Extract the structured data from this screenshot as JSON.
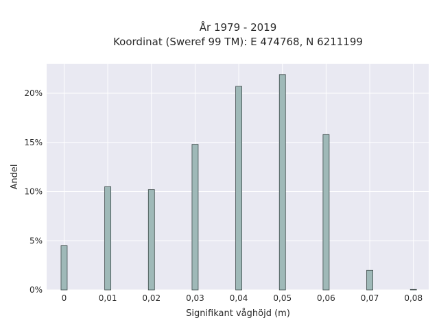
{
  "chart_data": {
    "type": "bar",
    "title_line1": "År 1979 - 2019",
    "title_line2": "Koordinat (Sweref 99 TM): E 474768, N 6211199",
    "xlabel": "Signifikant våghöjd (m)",
    "ylabel": "Andel",
    "x_tick_labels": [
      "0",
      "0,01",
      "0,02",
      "0,03",
      "0,04",
      "0,05",
      "0,06",
      "0,07",
      "0,08"
    ],
    "y_tick_labels": [
      "0%",
      "5%",
      "10%",
      "15%",
      "20%"
    ],
    "x": [
      0,
      0.01,
      0.02,
      0.03,
      0.04,
      0.05,
      0.06,
      0.07,
      0.08
    ],
    "values": [
      4.5,
      10.5,
      10.2,
      14.8,
      20.7,
      21.9,
      15.8,
      2.0,
      0.05
    ],
    "xlim": [
      -0.004,
      0.0835
    ],
    "ylim": [
      0,
      23
    ],
    "y_ticks": [
      0,
      5,
      10,
      15,
      20
    ],
    "grid": true,
    "colors": {
      "plot_bg": "#e9e9f2",
      "grid": "#ffffff",
      "bar_fill": "#9fb9b8",
      "bar_stroke": "#3d4a49"
    }
  }
}
